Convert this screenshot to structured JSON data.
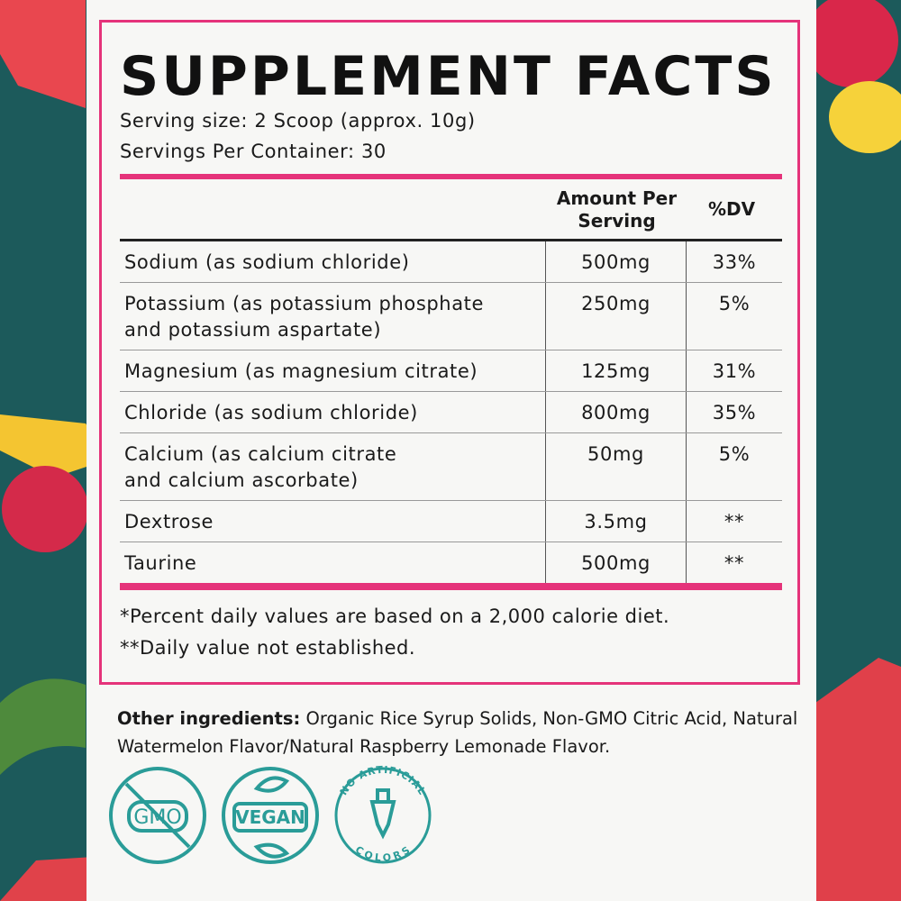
{
  "header": {
    "title": "SUPPLEMENT FACTS",
    "serving_size": "Serving size: 2 Scoop (approx. 10g)",
    "servings_per_container": "Servings Per Container: 30"
  },
  "table": {
    "columns": [
      "Amount Per Serving",
      "%DV"
    ],
    "rows": [
      {
        "name": [
          "Sodium (as sodium chloride)"
        ],
        "amount": "500mg",
        "dv": "33%"
      },
      {
        "name": [
          "Potassium (as potassium phosphate",
          "and potassium aspartate)"
        ],
        "amount": "250mg",
        "dv": "5%"
      },
      {
        "name": [
          "Magnesium (as magnesium citrate)"
        ],
        "amount": "125mg",
        "dv": "31%"
      },
      {
        "name": [
          "Chloride (as sodium chloride)"
        ],
        "amount": "800mg",
        "dv": "35%"
      },
      {
        "name": [
          "Calcium (as calcium citrate",
          "and calcium ascorbate)"
        ],
        "amount": "50mg",
        "dv": "5%"
      },
      {
        "name": [
          "Dextrose"
        ],
        "amount": "3.5mg",
        "dv": "**"
      },
      {
        "name": [
          "Taurine"
        ],
        "amount": "500mg",
        "dv": "**"
      }
    ]
  },
  "footnotes": [
    "*Percent daily values are based on a 2,000 calorie diet.",
    "**Daily value not established."
  ],
  "other_ingredients": {
    "label": "Other ingredients:",
    "text": "Organic Rice Syrup Solids, Non-GMO Citric Acid, Natural Watermelon Flavor/Natural Raspberry Lemonade Flavor."
  },
  "badges": {
    "gmo": "GMO",
    "vegan": "VEGAN",
    "colors_top": "NO ARTIFICIAL",
    "colors_bottom": "COLORS"
  }
}
